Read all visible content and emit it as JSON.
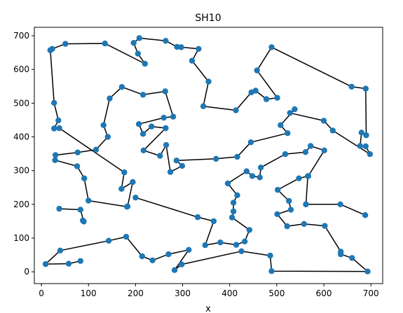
{
  "chart_data": {
    "type": "line",
    "title": "SH10",
    "xlabel": "x",
    "ylabel": "",
    "xlim": [
      -15,
      725
    ],
    "ylim": [
      -35,
      725
    ],
    "xticks": [
      0,
      100,
      200,
      300,
      400,
      500,
      600,
      700
    ],
    "yticks": [
      0,
      100,
      200,
      300,
      400,
      500,
      600,
      700
    ],
    "grid": false,
    "line_color": "#000000",
    "marker_color": "#1f77b4",
    "series": [
      {
        "points": [
          [
            19,
            657
          ],
          [
            23,
            661
          ],
          [
            51,
            676
          ],
          [
            135,
            677
          ],
          [
            220,
            617
          ],
          [
            205,
            647
          ],
          [
            196,
            679
          ],
          [
            208,
            693
          ],
          [
            264,
            685
          ],
          [
            288,
            667
          ],
          [
            297,
            666
          ],
          [
            334,
            661
          ],
          [
            320,
            626
          ],
          [
            355,
            564
          ],
          [
            344,
            491
          ],
          [
            413,
            479
          ],
          [
            446,
            532
          ],
          [
            455,
            537
          ],
          [
            478,
            512
          ],
          [
            501,
            516
          ],
          [
            458,
            597
          ],
          [
            489,
            666
          ],
          [
            659,
            549
          ],
          [
            689,
            543
          ],
          [
            690,
            405
          ],
          [
            680,
            413
          ],
          [
            677,
            373
          ],
          [
            689,
            372
          ],
          [
            698,
            349
          ],
          [
            619,
            419
          ],
          [
            600,
            448
          ],
          [
            528,
            471
          ],
          [
            538,
            482
          ],
          [
            508,
            435
          ],
          [
            523,
            411
          ],
          [
            445,
            384
          ],
          [
            416,
            341
          ],
          [
            371,
            335
          ],
          [
            287,
            330
          ],
          [
            299,
            314
          ],
          [
            274,
            296
          ],
          [
            265,
            376
          ],
          [
            252,
            344
          ],
          [
            217,
            360
          ],
          [
            264,
            426
          ],
          [
            234,
            431
          ],
          [
            216,
            409
          ],
          [
            207,
            438
          ],
          [
            260,
            457
          ],
          [
            280,
            460
          ],
          [
            263,
            535
          ],
          [
            216,
            525
          ],
          [
            171,
            548
          ],
          [
            145,
            514
          ],
          [
            132,
            435
          ],
          [
            141,
            400
          ],
          [
            116,
            362
          ],
          [
            77,
            354
          ],
          [
            30,
            346
          ],
          [
            29,
            331
          ],
          [
            76,
            313
          ],
          [
            91,
            277
          ],
          [
            100,
            211
          ],
          [
            182,
            193
          ],
          [
            183,
            194
          ],
          [
            194,
            266
          ],
          [
            170,
            246
          ],
          [
            176,
            295
          ],
          [
            38,
            426
          ],
          [
            27,
            425
          ],
          [
            36,
            449
          ],
          [
            27,
            501
          ],
          [
            19,
            657
          ]
        ]
      },
      {
        "points": [
          [
            200,
            220
          ],
          [
            332,
            162
          ],
          [
            366,
            150
          ],
          [
            348,
            79
          ],
          [
            380,
            87
          ],
          [
            414,
            80
          ],
          [
            432,
            90
          ],
          [
            442,
            124
          ],
          [
            405,
            161
          ],
          [
            408,
            179
          ],
          [
            408,
            205
          ],
          [
            416,
            227
          ],
          [
            396,
            262
          ],
          [
            436,
            298
          ],
          [
            448,
            284
          ],
          [
            464,
            280
          ],
          [
            466,
            309
          ],
          [
            518,
            349
          ],
          [
            561,
            355
          ],
          [
            572,
            373
          ],
          [
            601,
            360
          ],
          [
            567,
            284
          ],
          [
            547,
            277
          ],
          [
            502,
            243
          ],
          [
            526,
            210
          ],
          [
            530,
            184
          ],
          [
            501,
            171
          ],
          [
            522,
            135
          ],
          [
            558,
            142
          ],
          [
            602,
            136
          ],
          [
            636,
            60
          ],
          [
            636,
            52
          ],
          [
            660,
            41
          ],
          [
            693,
            1
          ],
          [
            489,
            2
          ],
          [
            486,
            48
          ],
          [
            425,
            61
          ],
          [
            298,
            22
          ],
          [
            283,
            5
          ],
          [
            313,
            65
          ],
          [
            270,
            52
          ],
          [
            236,
            34
          ],
          [
            214,
            46
          ],
          [
            180,
            104
          ],
          [
            143,
            92
          ],
          [
            40,
            63
          ],
          [
            9,
            23
          ],
          [
            58,
            24
          ],
          [
            83,
            32
          ]
        ]
      },
      {
        "points": [
          [
            38,
            187
          ],
          [
            83,
            184
          ],
          [
            90,
            149
          ],
          [
            88,
            152
          ]
        ]
      },
      {
        "points": [
          [
            562,
            200
          ],
          [
            635,
            200
          ],
          [
            688,
            168
          ]
        ]
      },
      {
        "points": [
          [
            562,
            200
          ],
          [
            566,
            284
          ]
        ]
      }
    ]
  }
}
